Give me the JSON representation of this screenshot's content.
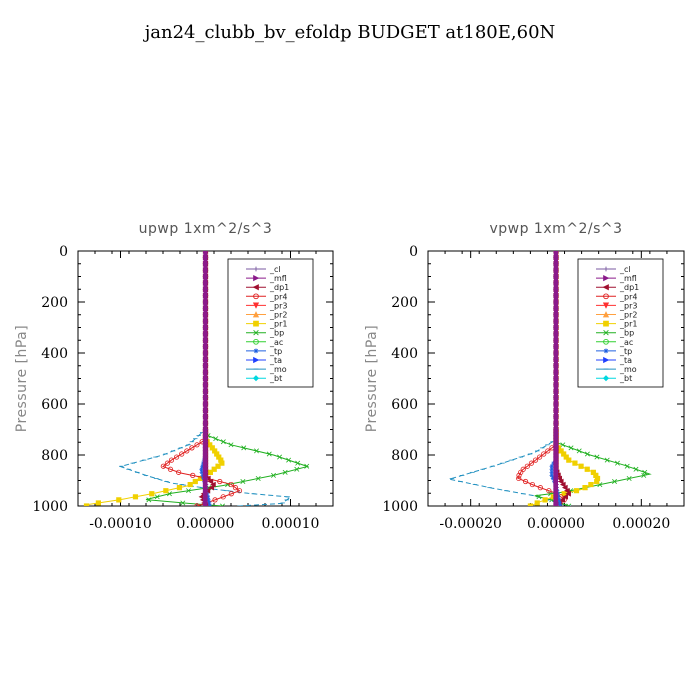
{
  "page_title": "jan24_clubb_bv_efoldp  BUDGET at180E,60N",
  "legend_items": [
    {
      "name": "_cl",
      "color": "#7a5aa0",
      "marker": "plus"
    },
    {
      "name": "_mfl",
      "color": "#8b1a8b",
      "marker": "triangle-right"
    },
    {
      "name": "_dp1",
      "color": "#a01030",
      "marker": "triangle-left"
    },
    {
      "name": "_pr4",
      "color": "#e02020",
      "marker": "circle"
    },
    {
      "name": "_pr3",
      "color": "#ff3030",
      "marker": "triangle-down"
    },
    {
      "name": "_pr2",
      "color": "#ffa040",
      "marker": "triangle-up"
    },
    {
      "name": "_pr1",
      "color": "#f0d000",
      "marker": "square"
    },
    {
      "name": "_bp",
      "color": "#20b020",
      "marker": "x"
    },
    {
      "name": "_ac",
      "color": "#30d030",
      "marker": "circle"
    },
    {
      "name": "_tp",
      "color": "#2060e0",
      "marker": "star"
    },
    {
      "name": "_ta",
      "color": "#2040ff",
      "marker": "triangle-right"
    },
    {
      "name": "_mo",
      "color": "#2090c0",
      "marker": "dash"
    },
    {
      "name": "_bt",
      "color": "#00d8e0",
      "marker": "diamond"
    }
  ],
  "chart_data": [
    {
      "type": "line",
      "title": "upwp   1xm^2/s^3",
      "xlabel": "",
      "ylabel": "Pressure [hPa]",
      "xlim": [
        -0.00015,
        0.00015
      ],
      "ylim": [
        1000,
        0
      ],
      "x_ticks": [
        -0.0001,
        0.0,
        0.0001
      ],
      "x_tick_labels": [
        "-0.00010",
        "0.00000",
        "0.00010"
      ],
      "y_ticks": [
        0,
        200,
        400,
        600,
        800,
        1000
      ],
      "y_tick_labels": [
        "0",
        "200",
        "400",
        "600",
        "800",
        "1000"
      ],
      "legend": "top-right",
      "grid": false,
      "series": [
        {
          "name": "_mo",
          "color": "#2090c0",
          "points": [
            [
              0,
              0
            ],
            [
              0,
              700
            ],
            [
              -2e-05,
              760
            ],
            [
              -5e-05,
              800
            ],
            [
              -0.0001,
              845
            ],
            [
              -7e-05,
              880
            ],
            [
              -4e-05,
              910
            ],
            [
              0.0,
              930
            ],
            [
              5e-05,
              950
            ],
            [
              0.0001,
              965
            ],
            [
              9e-05,
              990
            ],
            [
              4e-05,
              1000
            ]
          ]
        },
        {
          "name": "_bp",
          "color": "#20b020",
          "points": [
            [
              0,
              0
            ],
            [
              0,
              720
            ],
            [
              3e-05,
              760
            ],
            [
              8e-05,
              800
            ],
            [
              0.00012,
              845
            ],
            [
              8e-05,
              880
            ],
            [
              2e-05,
              920
            ],
            [
              -4e-05,
              950
            ],
            [
              -7e-05,
              975
            ],
            [
              -2e-05,
              990
            ],
            [
              2e-05,
              1000
            ]
          ]
        },
        {
          "name": "_pr1",
          "color": "#f0d000",
          "points": [
            [
              0,
              0
            ],
            [
              0,
              740
            ],
            [
              1e-05,
              780
            ],
            [
              2e-05,
              830
            ],
            [
              5e-06,
              870
            ],
            [
              -2e-05,
              920
            ],
            [
              -6e-05,
              950
            ],
            [
              -0.0001,
              975
            ],
            [
              -0.00014,
              995
            ]
          ]
        },
        {
          "name": "_pr4",
          "color": "#e02020",
          "points": [
            [
              0,
              0
            ],
            [
              0,
              740
            ],
            [
              -2e-05,
              780
            ],
            [
              -4e-05,
              820
            ],
            [
              -5e-05,
              845
            ],
            [
              -3e-05,
              870
            ],
            [
              0.0,
              890
            ],
            [
              3e-05,
              915
            ],
            [
              4e-05,
              940
            ],
            [
              2e-05,
              965
            ],
            [
              0.0,
              990
            ],
            [
              -1e-05,
              1000
            ]
          ]
        },
        {
          "name": "_tp",
          "color": "#2060e0",
          "points": [
            [
              0,
              0
            ],
            [
              0,
              800
            ],
            [
              -5e-06,
              860
            ],
            [
              0.0,
              920
            ],
            [
              5e-06,
              1000
            ]
          ]
        },
        {
          "name": "_dp1",
          "color": "#a01030",
          "points": [
            [
              0,
              0
            ],
            [
              0,
              880
            ],
            [
              1e-05,
              920
            ],
            [
              -5e-06,
              960
            ],
            [
              0.0,
              1000
            ]
          ]
        },
        {
          "name": "_mfl",
          "color": "#8b1a8b",
          "points": [
            [
              0,
              0
            ],
            [
              0,
              1000
            ]
          ]
        },
        {
          "name": "_cl",
          "color": "#7a5aa0",
          "points": [
            [
              0,
              0
            ],
            [
              0,
              1000
            ]
          ]
        }
      ]
    },
    {
      "type": "line",
      "title": "vpwp   1xm^2/s^3",
      "xlabel": "",
      "ylabel": "Pressure [hPa]",
      "xlim": [
        -0.0003,
        0.0003
      ],
      "ylim": [
        1000,
        0
      ],
      "x_ticks": [
        -0.0002,
        0.0,
        0.0002
      ],
      "x_tick_labels": [
        "-0.00020",
        "0.00000",
        "0.00020"
      ],
      "y_ticks": [
        0,
        200,
        400,
        600,
        800,
        1000
      ],
      "y_tick_labels": [
        "0",
        "200",
        "400",
        "600",
        "800",
        "1000"
      ],
      "legend": "top-right",
      "grid": false,
      "series": [
        {
          "name": "_mo",
          "color": "#2090c0",
          "points": [
            [
              0,
              0
            ],
            [
              0,
              740
            ],
            [
              -5e-05,
              790
            ],
            [
              -0.00014,
              840
            ],
            [
              -0.00025,
              895
            ],
            [
              -0.00015,
              930
            ],
            [
              -5e-05,
              960
            ],
            [
              0.0,
              985
            ],
            [
              3e-05,
              1000
            ]
          ]
        },
        {
          "name": "_bp",
          "color": "#20b020",
          "points": [
            [
              0,
              0
            ],
            [
              0,
              750
            ],
            [
              8e-05,
              800
            ],
            [
              0.00016,
              840
            ],
            [
              0.00022,
              875
            ],
            [
              0.00012,
              910
            ],
            [
              2e-05,
              945
            ],
            [
              -5e-05,
              960
            ],
            [
              0.0,
              980
            ],
            [
              3e-05,
              1000
            ]
          ]
        },
        {
          "name": "_pr1",
          "color": "#f0d000",
          "points": [
            [
              0,
              0
            ],
            [
              0,
              760
            ],
            [
              3e-05,
              820
            ],
            [
              9e-05,
              870
            ],
            [
              0.0001,
              900
            ],
            [
              6e-05,
              935
            ],
            [
              0.0,
              960
            ],
            [
              -4e-05,
              985
            ],
            [
              -6e-05,
              1000
            ]
          ]
        },
        {
          "name": "_pr4",
          "color": "#e02020",
          "points": [
            [
              0,
              0
            ],
            [
              0,
              760
            ],
            [
              -4e-05,
              810
            ],
            [
              -8e-05,
              860
            ],
            [
              -9e-05,
              890
            ],
            [
              -5e-05,
              920
            ],
            [
              0.0,
              950
            ],
            [
              2e-05,
              975
            ],
            [
              0.0,
              1000
            ]
          ]
        },
        {
          "name": "_dp1",
          "color": "#a01030",
          "points": [
            [
              0,
              0
            ],
            [
              0,
              860
            ],
            [
              1e-05,
              900
            ],
            [
              3e-05,
              950
            ],
            [
              1e-05,
              985
            ],
            [
              0.0,
              1000
            ]
          ]
        },
        {
          "name": "_tp",
          "color": "#2060e0",
          "points": [
            [
              0,
              0
            ],
            [
              0,
              820
            ],
            [
              -1e-05,
              840
            ],
            [
              -1e-05,
              880
            ],
            [
              0.0,
              920
            ],
            [
              1e-05,
              1000
            ]
          ]
        },
        {
          "name": "_mfl",
          "color": "#8b1a8b",
          "points": [
            [
              0,
              0
            ],
            [
              0,
              1000
            ]
          ]
        },
        {
          "name": "_cl",
          "color": "#7a5aa0",
          "points": [
            [
              0,
              0
            ],
            [
              0,
              1000
            ]
          ]
        }
      ]
    }
  ]
}
